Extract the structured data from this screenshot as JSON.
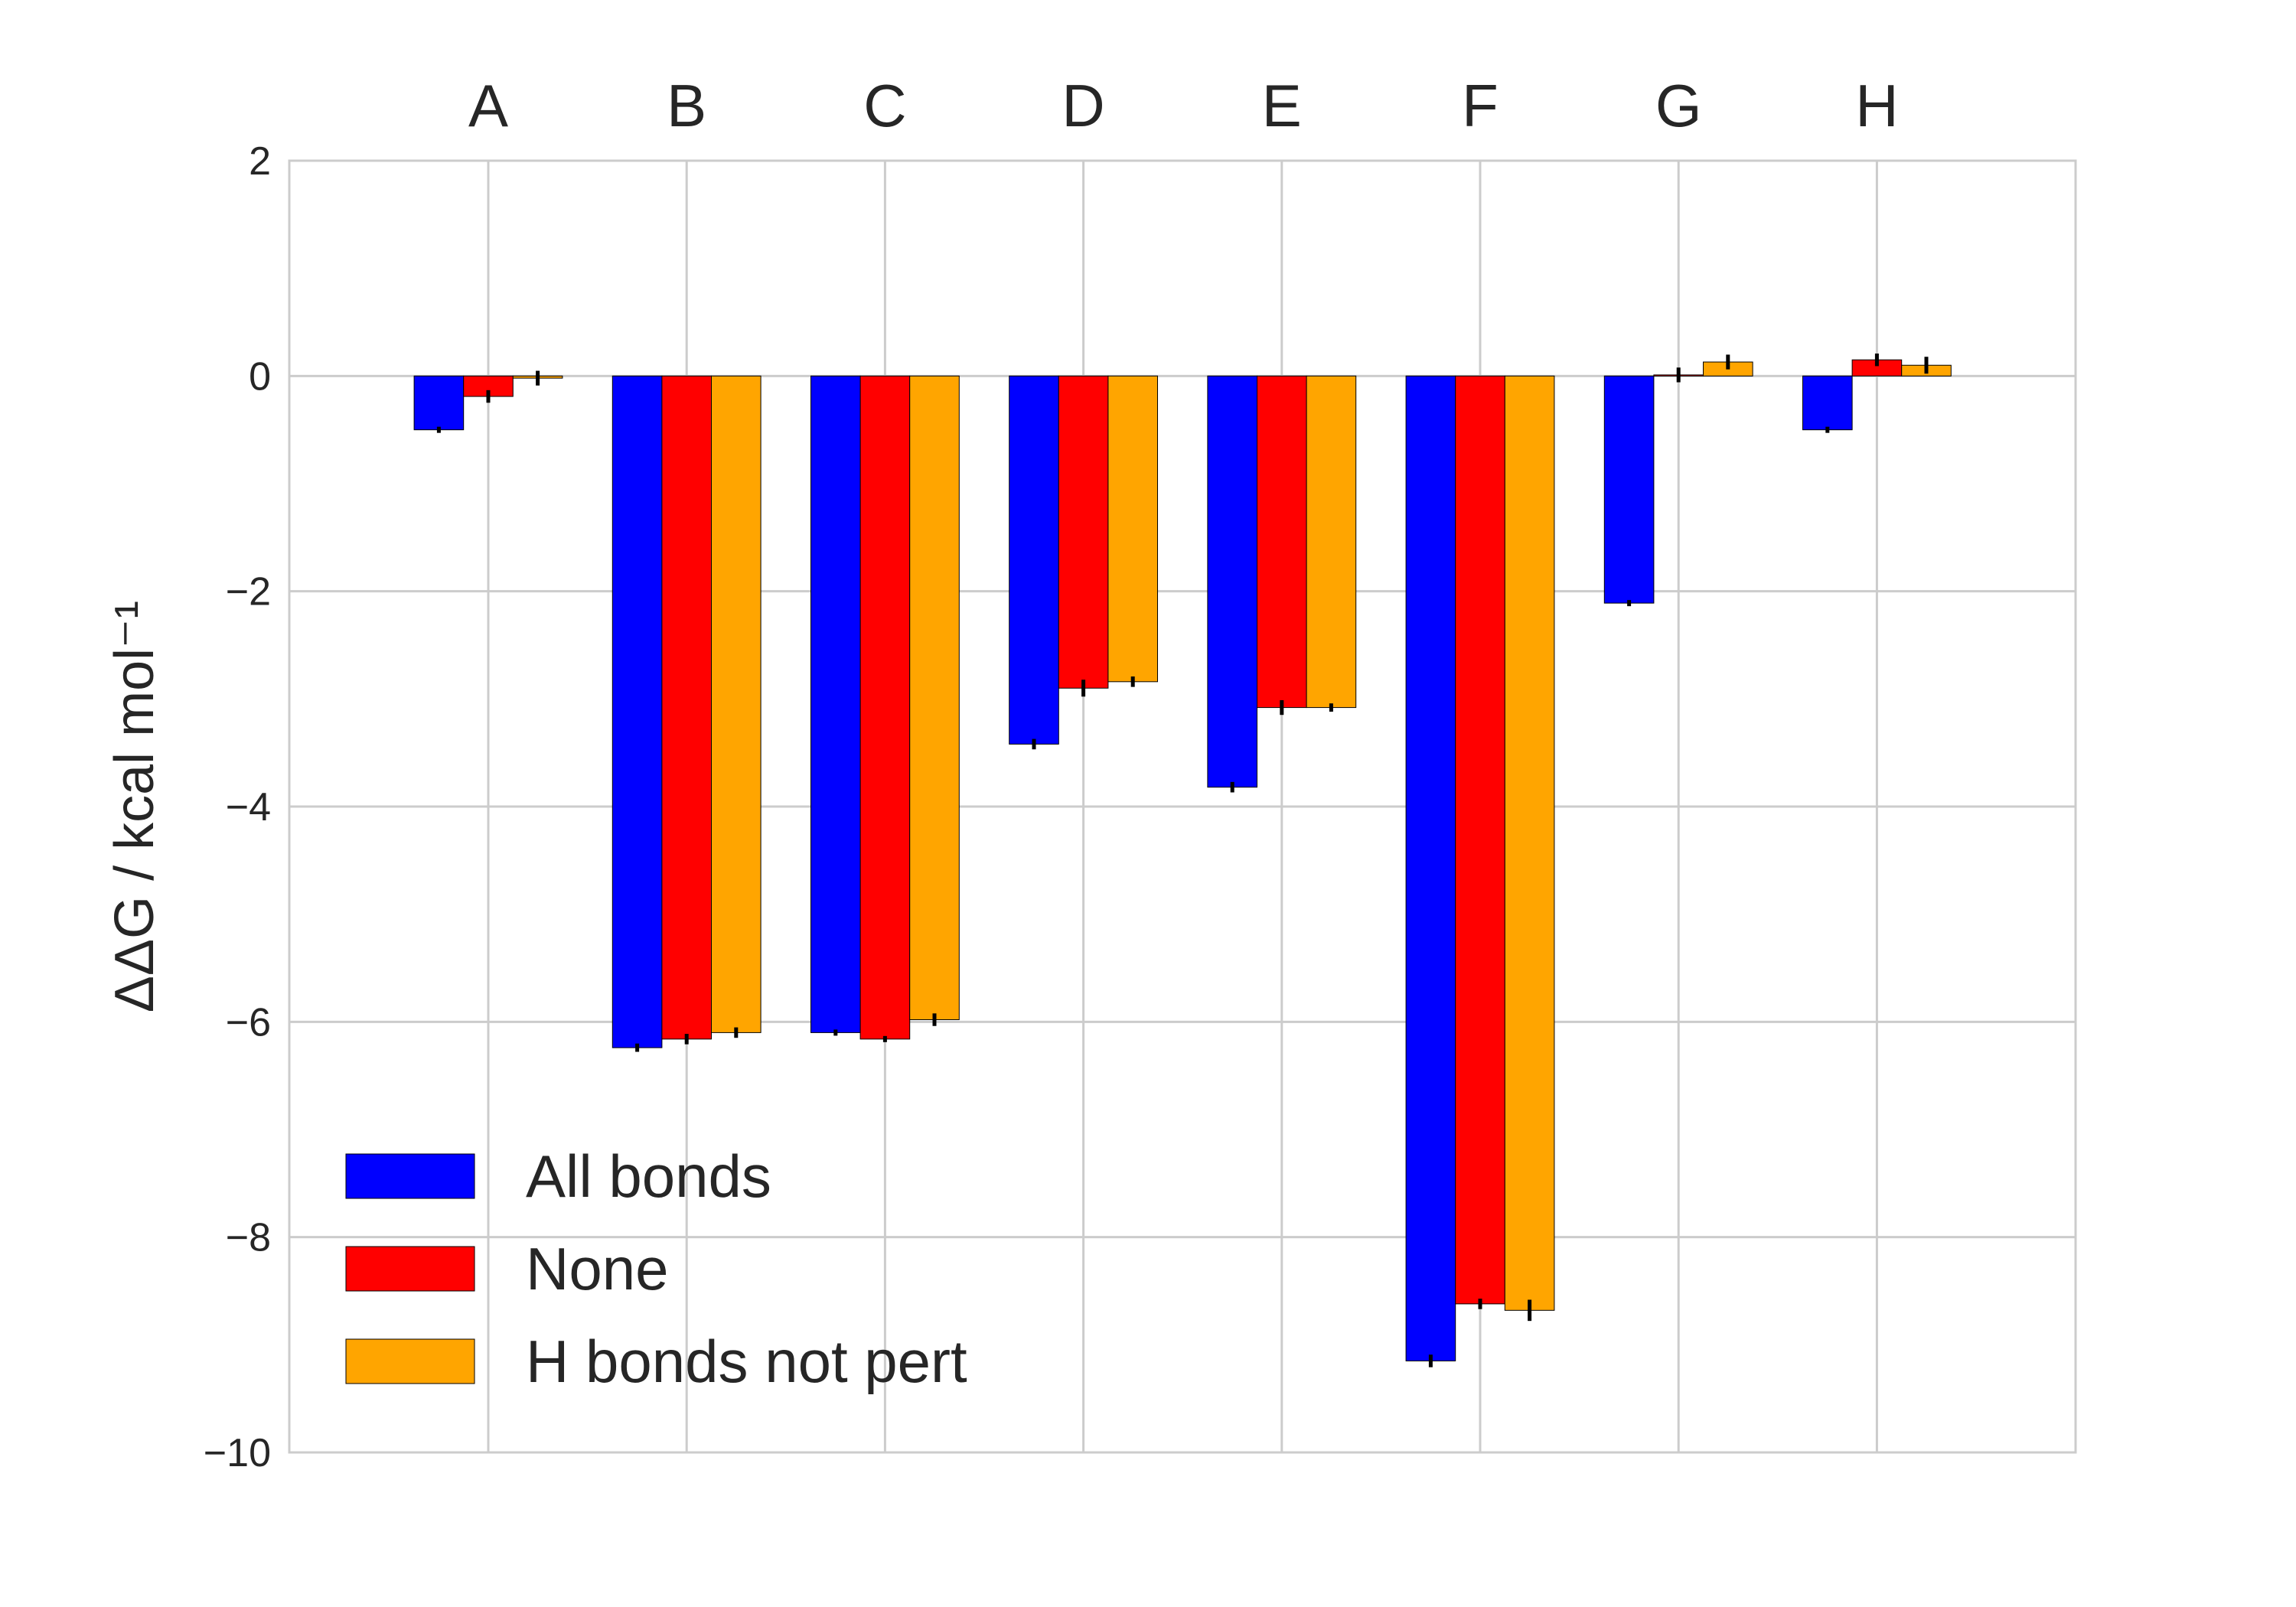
{
  "chart_data": {
    "type": "bar",
    "categories": [
      "A",
      "B",
      "C",
      "D",
      "E",
      "F",
      "G",
      "H"
    ],
    "series": [
      {
        "name": "All bonds",
        "color": "#0000ff",
        "values": [
          -0.5,
          -6.24,
          -6.1,
          -3.42,
          -3.82,
          -9.15,
          -2.11,
          -0.5
        ],
        "errors": [
          0.0,
          0.01,
          0.0,
          0.02,
          0.02,
          0.03,
          0.0,
          0.0
        ]
      },
      {
        "name": "None",
        "color": "#ff0000",
        "values": [
          -0.19,
          -6.16,
          -6.16,
          -2.9,
          -3.08,
          -8.62,
          0.01,
          0.15
        ],
        "errors": [
          0.03,
          0.02,
          0.0,
          0.05,
          0.04,
          0.02,
          0.04,
          0.03
        ]
      },
      {
        "name": "H bonds not pert",
        "color": "#ffa500",
        "values": [
          -0.02,
          -6.1,
          -5.98,
          -2.84,
          -3.08,
          -8.68,
          0.13,
          0.1
        ],
        "errors": [
          0.04,
          0.02,
          0.03,
          0.02,
          0.01,
          0.07,
          0.04,
          0.05
        ]
      }
    ],
    "ylabel": "ΔΔG / kcal mol⁻¹",
    "xlabel": "",
    "title": "",
    "ylim": [
      -10,
      2
    ],
    "yticks": [
      "2",
      "0",
      "−2",
      "−4",
      "−6",
      "−8",
      "−10"
    ],
    "ytick_values": [
      2,
      0,
      -2,
      -4,
      -6,
      -8,
      -10
    ],
    "xaxis_position": "top",
    "grid": true,
    "legend_position": "lower-left"
  }
}
